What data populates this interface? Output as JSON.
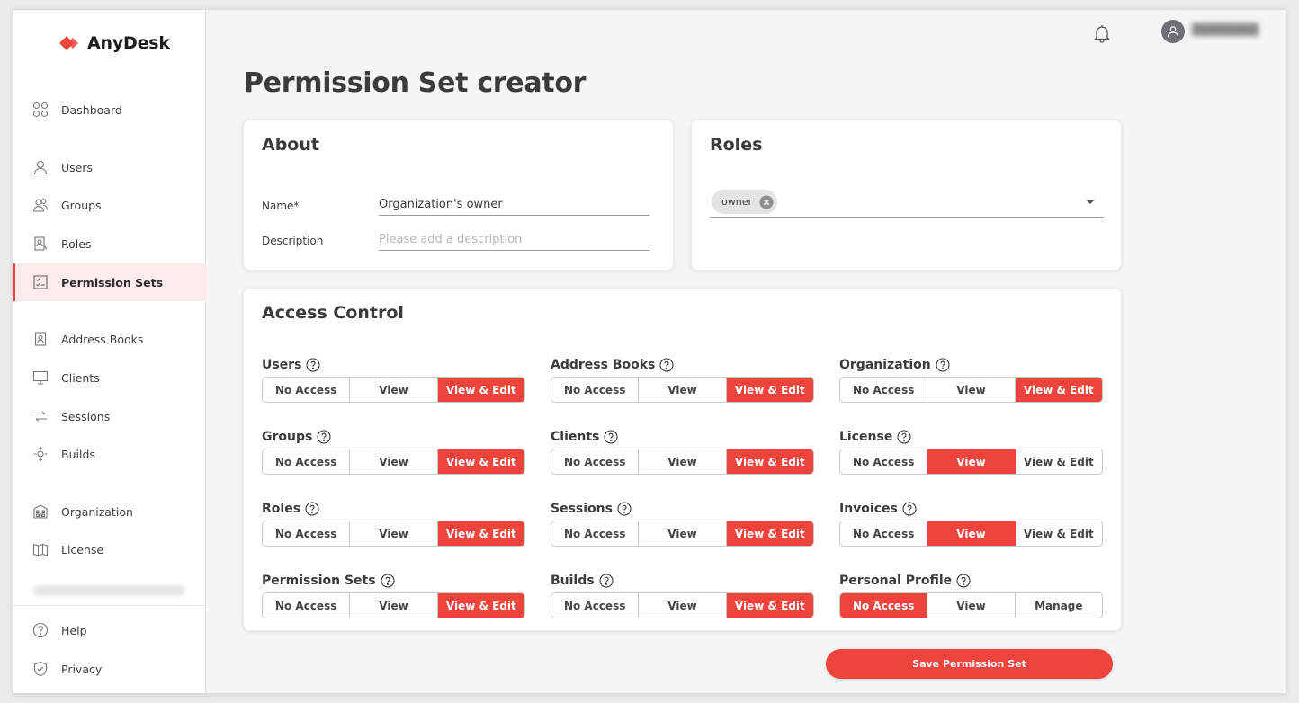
{
  "app": {
    "brand": "AnyDesk",
    "brand_color": "#ef443b"
  },
  "sidebar": {
    "items": [
      {
        "label": "Dashboard",
        "icon": "dashboard-icon"
      },
      {
        "label": "Users",
        "icon": "user-icon"
      },
      {
        "label": "Groups",
        "icon": "group-icon"
      },
      {
        "label": "Roles",
        "icon": "roles-icon"
      },
      {
        "label": "Permission Sets",
        "icon": "checklist-icon",
        "active": true
      },
      {
        "label": "Address Books",
        "icon": "address-book-icon"
      },
      {
        "label": "Clients",
        "icon": "monitor-icon"
      },
      {
        "label": "Sessions",
        "icon": "arrows-icon"
      },
      {
        "label": "Builds",
        "icon": "build-icon"
      },
      {
        "label": "Organization",
        "icon": "building-icon"
      },
      {
        "label": "License",
        "icon": "license-icon"
      },
      {
        "label": "Help",
        "icon": "help-icon"
      },
      {
        "label": "Privacy",
        "icon": "shield-icon"
      }
    ]
  },
  "header": {
    "notifications_icon": "bell-icon",
    "avatar_icon": "user-avatar-icon"
  },
  "page": {
    "title": "Permission Set creator"
  },
  "about": {
    "title": "About",
    "name_label": "Name*",
    "name_value": "Organization's owner",
    "description_label": "Description",
    "description_placeholder": "Please add a description"
  },
  "roles": {
    "title": "Roles",
    "chips": [
      "owner"
    ]
  },
  "access_control": {
    "title": "Access Control",
    "permissions": [
      {
        "label": "Users",
        "options": [
          "No Access",
          "View",
          "View & Edit"
        ],
        "selected": 2
      },
      {
        "label": "Address Books",
        "options": [
          "No Access",
          "View",
          "View & Edit"
        ],
        "selected": 2
      },
      {
        "label": "Organization",
        "options": [
          "No Access",
          "View",
          "View & Edit"
        ],
        "selected": 2
      },
      {
        "label": "Groups",
        "options": [
          "No Access",
          "View",
          "View & Edit"
        ],
        "selected": 2
      },
      {
        "label": "Clients",
        "options": [
          "No Access",
          "View",
          "View & Edit"
        ],
        "selected": 2
      },
      {
        "label": "License",
        "options": [
          "No Access",
          "View",
          "View & Edit"
        ],
        "selected": 1
      },
      {
        "label": "Roles",
        "options": [
          "No Access",
          "View",
          "View & Edit"
        ],
        "selected": 2
      },
      {
        "label": "Sessions",
        "options": [
          "No Access",
          "View",
          "View & Edit"
        ],
        "selected": 2
      },
      {
        "label": "Invoices",
        "options": [
          "No Access",
          "View",
          "View & Edit"
        ],
        "selected": 1
      },
      {
        "label": "Permission Sets",
        "options": [
          "No Access",
          "View",
          "View & Edit"
        ],
        "selected": 2
      },
      {
        "label": "Builds",
        "options": [
          "No Access",
          "View",
          "View & Edit"
        ],
        "selected": 2
      },
      {
        "label": "Personal Profile",
        "options": [
          "No Access",
          "View",
          "Manage"
        ],
        "selected": 0
      }
    ]
  },
  "actions": {
    "save_label": "Save Permission Set"
  }
}
